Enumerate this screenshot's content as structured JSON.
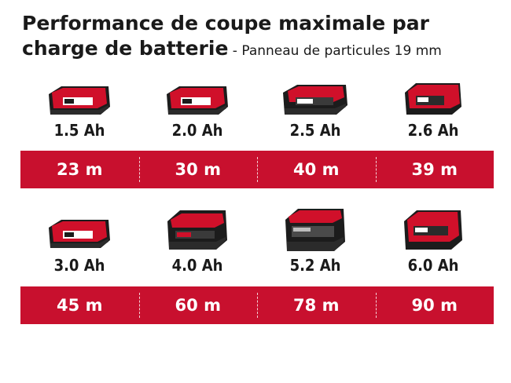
{
  "title": {
    "main_line1": "Performance de coupe maximale par",
    "main_line2": "charge de batterie",
    "sub": " - Panneau de particules 19 mm"
  },
  "rows": [
    {
      "batteries": [
        {
          "capacity": "1.5 Ah",
          "cut": "23 m",
          "icon": "battery-icon-small"
        },
        {
          "capacity": "2.0 Ah",
          "cut": "30 m",
          "icon": "battery-icon-small"
        },
        {
          "capacity": "2.5 Ah",
          "cut": "40 m",
          "icon": "battery-icon-plus"
        },
        {
          "capacity": "2.6 Ah",
          "cut": "39 m",
          "icon": "battery-icon-small-red"
        }
      ]
    },
    {
      "batteries": [
        {
          "capacity": "3.0 Ah",
          "cut": "45 m",
          "icon": "battery-icon-small"
        },
        {
          "capacity": "4.0 Ah",
          "cut": "60 m",
          "icon": "battery-icon-large"
        },
        {
          "capacity": "5.2 Ah",
          "cut": "78 m",
          "icon": "battery-icon-multi"
        },
        {
          "capacity": "6.0 Ah",
          "cut": "90 m",
          "icon": "battery-icon-large-red"
        }
      ]
    }
  ],
  "colors": {
    "band": "#c8102e",
    "battery_red": "#d0102a",
    "battery_dark": "#1c1c1c"
  }
}
